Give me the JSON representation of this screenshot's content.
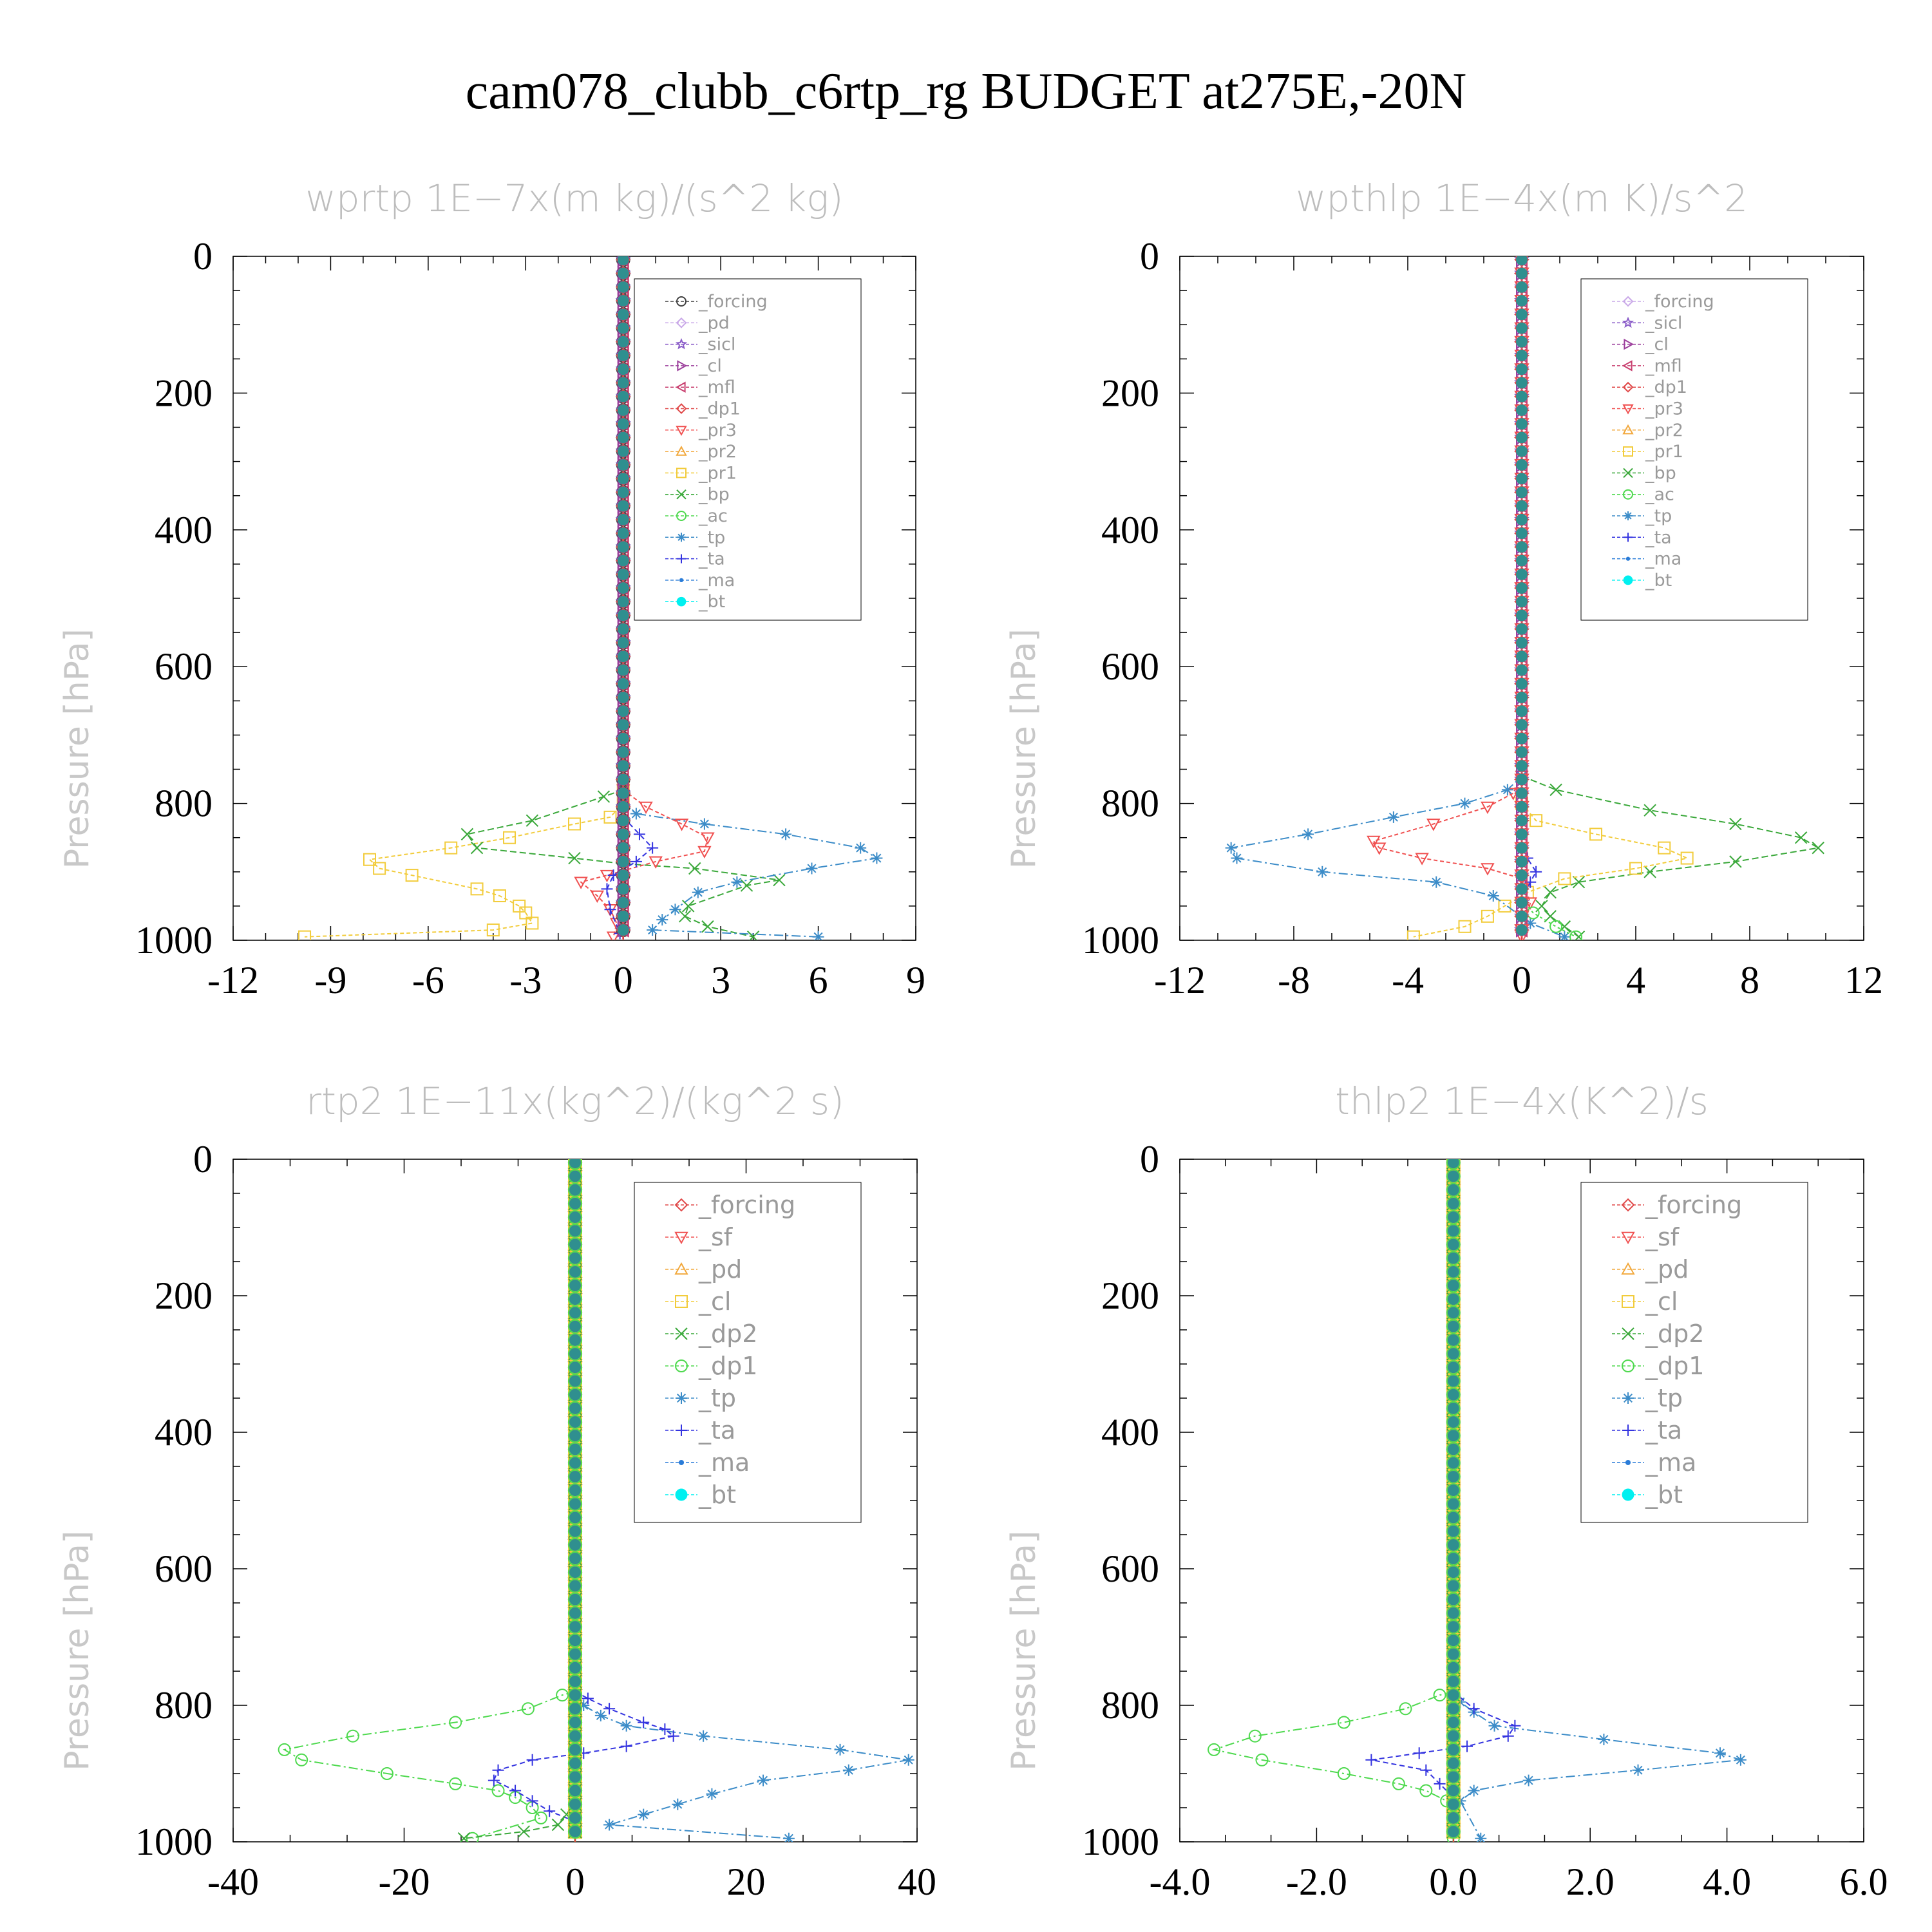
{
  "figure_title": "cam078_clubb_c6rtp_rg  BUDGET at275E,-20N",
  "chart_data": [
    {
      "type": "line",
      "title": "wprtp   1E−7x(m kg)/(s^2 kg)",
      "ylabel": "Pressure [hPa]",
      "xlabel": "",
      "xlim": [
        -12,
        9
      ],
      "xticks": [
        -12,
        -9,
        -6,
        -3,
        0,
        3,
        6,
        9
      ],
      "xtick_labels": [
        "-12",
        "-9",
        "-6",
        "-3",
        "0",
        "3",
        "6",
        "9"
      ],
      "ylim": [
        0,
        1000
      ],
      "yticks": [
        0,
        200,
        400,
        600,
        800,
        1000
      ],
      "ytick_labels": [
        "0",
        "200",
        "400",
        "600",
        "800",
        "1000"
      ],
      "y_reversed": true,
      "legend_position": "top-right",
      "legend_size": "small",
      "legend": [
        {
          "name": "_forcing",
          "color": "#404040",
          "marker": "circle"
        },
        {
          "name": "_pd",
          "color": "#c9a8e8",
          "marker": "diamond"
        },
        {
          "name": "_sicl",
          "color": "#8a5cc8",
          "marker": "star"
        },
        {
          "name": "_cl",
          "color": "#9c3f9c",
          "marker": "tri-right"
        },
        {
          "name": "_mfl",
          "color": "#c83e6e",
          "marker": "tri-left"
        },
        {
          "name": "_dp1",
          "color": "#e04848",
          "marker": "diamond"
        },
        {
          "name": "_pr3",
          "color": "#f05050",
          "marker": "tri-down"
        },
        {
          "name": "_pr2",
          "color": "#f2a83c",
          "marker": "tri-up"
        },
        {
          "name": "_pr1",
          "color": "#f2cc3c",
          "marker": "square"
        },
        {
          "name": "_bp",
          "color": "#3aa83a",
          "marker": "x"
        },
        {
          "name": "_ac",
          "color": "#4ed94e",
          "marker": "circle"
        },
        {
          "name": "_tp",
          "color": "#3c8cc8",
          "marker": "asterisk"
        },
        {
          "name": "_ta",
          "color": "#3434e0",
          "marker": "plus"
        },
        {
          "name": "_ma",
          "color": "#2a7cd8",
          "marker": "dot"
        },
        {
          "name": "_bt",
          "color": "#00f0f0",
          "marker": "filled-circle"
        }
      ],
      "series": [
        {
          "name": "_pr1",
          "color": "#f2cc3c",
          "marker": "square",
          "dash": "6,4",
          "x": [
            0,
            0,
            -0.4,
            -1.5,
            -3.5,
            -5.3,
            -7.8,
            -7.5,
            -6.5,
            -4.5,
            -3.8,
            -3.2,
            -3.0,
            -2.8,
            -4.0,
            -9.8
          ],
          "y": [
            780,
            800,
            820,
            830,
            850,
            865,
            882,
            895,
            905,
            925,
            935,
            950,
            960,
            975,
            985,
            995
          ]
        },
        {
          "name": "_bp",
          "color": "#3aa83a",
          "marker": "x",
          "dash": "10,5",
          "x": [
            0,
            -0.6,
            -2.8,
            -4.8,
            -4.5,
            -1.5,
            0,
            2.2,
            4.8,
            3.8,
            2.0,
            1.9,
            2.6,
            4.0
          ],
          "y": [
            780,
            790,
            825,
            845,
            865,
            880,
            888,
            895,
            912,
            920,
            950,
            965,
            980,
            995
          ]
        },
        {
          "name": "_tp",
          "color": "#3c8cc8",
          "marker": "asterisk",
          "dash": "14,5,3,5",
          "x": [
            0,
            0.4,
            2.5,
            5.0,
            7.3,
            7.8,
            5.8,
            3.5,
            2.3,
            1.6,
            1.2,
            0.9,
            6.0
          ],
          "y": [
            800,
            815,
            830,
            845,
            865,
            880,
            895,
            915,
            930,
            955,
            970,
            985,
            995
          ]
        },
        {
          "name": "_pr3",
          "color": "#f05050",
          "marker": "tri-down",
          "dash": "6,4",
          "x": [
            0,
            0.7,
            1.8,
            2.6,
            2.5,
            1.0,
            -0.5,
            -1.3,
            -0.8,
            -0.4,
            -0.2,
            -0.3
          ],
          "y": [
            780,
            805,
            830,
            850,
            870,
            885,
            905,
            915,
            935,
            955,
            975,
            995
          ]
        },
        {
          "name": "_ta",
          "color": "#3434e0",
          "marker": "plus",
          "dash": "8,5",
          "x": [
            0,
            0.5,
            0.9,
            0.4,
            -0.3,
            -0.5,
            -0.4,
            -0.1
          ],
          "y": [
            820,
            845,
            865,
            885,
            905,
            925,
            955,
            990
          ]
        }
      ]
    },
    {
      "type": "line",
      "title": "wpthlp   1E−4x(m K)/s^2",
      "ylabel": "Pressure [hPa]",
      "xlabel": "",
      "xlim": [
        -12,
        12
      ],
      "xticks": [
        -12,
        -8,
        -4,
        0,
        4,
        8,
        12
      ],
      "xtick_labels": [
        "-12",
        "-8",
        "-4",
        "0",
        "4",
        "8",
        "12"
      ],
      "ylim": [
        0,
        1000
      ],
      "yticks": [
        0,
        200,
        400,
        600,
        800,
        1000
      ],
      "ytick_labels": [
        "0",
        "200",
        "400",
        "600",
        "800",
        "1000"
      ],
      "y_reversed": true,
      "legend_position": "top-right",
      "legend_size": "small",
      "legend": [
        {
          "name": "_forcing",
          "color": "#c9a8e8",
          "marker": "diamond"
        },
        {
          "name": "_sicl",
          "color": "#8a5cc8",
          "marker": "star"
        },
        {
          "name": "_cl",
          "color": "#9c3f9c",
          "marker": "tri-right"
        },
        {
          "name": "_mfl",
          "color": "#c83e6e",
          "marker": "tri-left"
        },
        {
          "name": "_dp1",
          "color": "#e04848",
          "marker": "diamond"
        },
        {
          "name": "_pr3",
          "color": "#f05050",
          "marker": "tri-down"
        },
        {
          "name": "_pr2",
          "color": "#f2a83c",
          "marker": "tri-up"
        },
        {
          "name": "_pr1",
          "color": "#f2cc3c",
          "marker": "square"
        },
        {
          "name": "_bp",
          "color": "#3aa83a",
          "marker": "x"
        },
        {
          "name": "_ac",
          "color": "#4ed94e",
          "marker": "circle"
        },
        {
          "name": "_tp",
          "color": "#3c8cc8",
          "marker": "asterisk"
        },
        {
          "name": "_ta",
          "color": "#3434e0",
          "marker": "plus"
        },
        {
          "name": "_ma",
          "color": "#2a7cd8",
          "marker": "dot"
        },
        {
          "name": "_bt",
          "color": "#00f0f0",
          "marker": "filled-circle"
        }
      ],
      "series": [
        {
          "name": "_bp",
          "color": "#3aa83a",
          "marker": "x",
          "dash": "10,5",
          "x": [
            0,
            1.2,
            4.5,
            7.5,
            9.8,
            10.4,
            7.5,
            4.5,
            2.0,
            1.0,
            0.7,
            1.0,
            1.5,
            2.0
          ],
          "y": [
            760,
            780,
            810,
            830,
            850,
            865,
            885,
            900,
            915,
            930,
            950,
            965,
            980,
            995
          ]
        },
        {
          "name": "_pr1",
          "color": "#f2cc3c",
          "marker": "square",
          "dash": "6,4",
          "x": [
            0,
            0.5,
            2.6,
            5.0,
            5.8,
            4.0,
            1.5,
            0.2,
            -0.6,
            -1.2,
            -2.0,
            -3.8
          ],
          "y": [
            800,
            825,
            845,
            865,
            880,
            895,
            910,
            930,
            950,
            965,
            980,
            995
          ]
        },
        {
          "name": "_pr3",
          "color": "#f05050",
          "marker": "tri-down",
          "dash": "6,4",
          "x": [
            0,
            -0.3,
            -1.2,
            -3.1,
            -5.2,
            -5.0,
            -3.5,
            -1.2,
            0,
            0.3,
            0
          ],
          "y": [
            760,
            785,
            805,
            830,
            855,
            865,
            880,
            895,
            910,
            945,
            995
          ]
        },
        {
          "name": "_tp",
          "color": "#3c8cc8",
          "marker": "asterisk",
          "dash": "14,5,3,5",
          "x": [
            0,
            -0.5,
            -2.0,
            -4.5,
            -7.5,
            -10.2,
            -10.0,
            -7.0,
            -3.0,
            -1.0,
            0.3,
            1.5
          ],
          "y": [
            760,
            780,
            800,
            820,
            845,
            865,
            880,
            900,
            915,
            935,
            975,
            995
          ]
        },
        {
          "name": "_ta",
          "color": "#3434e0",
          "marker": "plus",
          "dash": "8,5",
          "x": [
            0,
            0.2,
            0.5,
            0.3,
            0
          ],
          "y": [
            860,
            880,
            900,
            915,
            940
          ]
        },
        {
          "name": "_ac",
          "color": "#4ed94e",
          "marker": "circle",
          "dash": "4,4",
          "x": [
            0,
            0.4,
            1.2,
            1.9
          ],
          "y": [
            940,
            960,
            980,
            995
          ]
        }
      ]
    },
    {
      "type": "line",
      "title": "rtp2   1E−11x(kg^2)/(kg^2 s)",
      "ylabel": "Pressure [hPa]",
      "xlabel": "",
      "xlim": [
        -40,
        40
      ],
      "xticks": [
        -40,
        -20,
        0,
        20,
        40
      ],
      "xtick_labels": [
        "-40",
        "-20",
        "0",
        "20",
        "40"
      ],
      "ylim": [
        0,
        1000
      ],
      "yticks": [
        0,
        200,
        400,
        600,
        800,
        1000
      ],
      "ytick_labels": [
        "0",
        "200",
        "400",
        "600",
        "800",
        "1000"
      ],
      "y_reversed": true,
      "legend_position": "top-right",
      "legend_size": "large",
      "legend": [
        {
          "name": "_forcing",
          "color": "#e04848",
          "marker": "diamond"
        },
        {
          "name": "_sf",
          "color": "#f05050",
          "marker": "tri-down"
        },
        {
          "name": "_pd",
          "color": "#f2a83c",
          "marker": "tri-up"
        },
        {
          "name": "_cl",
          "color": "#f2cc3c",
          "marker": "square"
        },
        {
          "name": "_dp2",
          "color": "#3aa83a",
          "marker": "x"
        },
        {
          "name": "_dp1",
          "color": "#4ed94e",
          "marker": "circle"
        },
        {
          "name": "_tp",
          "color": "#3c8cc8",
          "marker": "asterisk"
        },
        {
          "name": "_ta",
          "color": "#3434e0",
          "marker": "plus"
        },
        {
          "name": "_ma",
          "color": "#2a7cd8",
          "marker": "dot"
        },
        {
          "name": "_bt",
          "color": "#00f0f0",
          "marker": "filled-circle"
        }
      ],
      "series": [
        {
          "name": "_dp1",
          "color": "#4ed94e",
          "marker": "circle",
          "dash": "14,5,3,5",
          "x": [
            0,
            -1.5,
            -5.5,
            -14,
            -26,
            -34,
            -32,
            -22,
            -14,
            -9,
            -7,
            -5,
            -4,
            -12
          ],
          "y": [
            780,
            785,
            805,
            825,
            845,
            865,
            880,
            900,
            915,
            925,
            935,
            950,
            965,
            995
          ]
        },
        {
          "name": "_tp",
          "color": "#3c8cc8",
          "marker": "asterisk",
          "dash": "14,5,3,5",
          "x": [
            0,
            1.0,
            3.0,
            6.0,
            15,
            31,
            39,
            32,
            22,
            16,
            12,
            8,
            4.0,
            25
          ],
          "y": [
            780,
            800,
            815,
            830,
            845,
            865,
            880,
            895,
            910,
            930,
            945,
            960,
            975,
            995
          ]
        },
        {
          "name": "_ta",
          "color": "#3434e0",
          "marker": "plus",
          "dash": "8,5",
          "x": [
            0,
            1.5,
            4.0,
            8.0,
            10.5,
            11.5,
            6.0,
            1.0,
            -5.0,
            -9.0,
            -9.5,
            -7.0,
            -5.0,
            -3.0,
            0
          ],
          "y": [
            780,
            790,
            805,
            825,
            835,
            845,
            860,
            870,
            880,
            895,
            910,
            925,
            940,
            955,
            970
          ]
        },
        {
          "name": "_dp2",
          "color": "#3aa83a",
          "marker": "x",
          "dash": "10,5",
          "x": [
            0,
            -1.0,
            -2.0,
            -6.0,
            -13
          ],
          "y": [
            940,
            960,
            975,
            985,
            995
          ]
        }
      ]
    },
    {
      "type": "line",
      "title": "thlp2   1E−4x(K^2)/s",
      "ylabel": "Pressure [hPa]",
      "xlabel": "",
      "xlim": [
        -4.0,
        6.0
      ],
      "xticks": [
        -4,
        -2,
        0,
        2,
        4,
        6
      ],
      "xtick_labels": [
        "-4.0",
        "-2.0",
        "0.0",
        "2.0",
        "4.0",
        "6.0"
      ],
      "ylim": [
        0,
        1000
      ],
      "yticks": [
        0,
        200,
        400,
        600,
        800,
        1000
      ],
      "ytick_labels": [
        "0",
        "200",
        "400",
        "600",
        "800",
        "1000"
      ],
      "y_reversed": true,
      "legend_position": "top-right",
      "legend_size": "large",
      "legend": [
        {
          "name": "_forcing",
          "color": "#e04848",
          "marker": "diamond"
        },
        {
          "name": "_sf",
          "color": "#f05050",
          "marker": "tri-down"
        },
        {
          "name": "_pd",
          "color": "#f2a83c",
          "marker": "tri-up"
        },
        {
          "name": "_cl",
          "color": "#f2cc3c",
          "marker": "square"
        },
        {
          "name": "_dp2",
          "color": "#3aa83a",
          "marker": "x"
        },
        {
          "name": "_dp1",
          "color": "#4ed94e",
          "marker": "circle"
        },
        {
          "name": "_tp",
          "color": "#3c8cc8",
          "marker": "asterisk"
        },
        {
          "name": "_ta",
          "color": "#3434e0",
          "marker": "plus"
        },
        {
          "name": "_ma",
          "color": "#2a7cd8",
          "marker": "dot"
        },
        {
          "name": "_bt",
          "color": "#00f0f0",
          "marker": "filled-circle"
        }
      ],
      "series": [
        {
          "name": "_dp1",
          "color": "#4ed94e",
          "marker": "circle",
          "dash": "14,5,3,5",
          "x": [
            0,
            -0.2,
            -0.7,
            -1.6,
            -2.9,
            -3.5,
            -2.8,
            -1.6,
            -0.8,
            -0.4,
            -0.1,
            0
          ],
          "y": [
            780,
            785,
            805,
            825,
            845,
            865,
            880,
            900,
            915,
            925,
            940,
            995
          ]
        },
        {
          "name": "_tp",
          "color": "#3c8cc8",
          "marker": "asterisk",
          "dash": "14,5,3,5",
          "x": [
            0,
            0.1,
            0.3,
            0.6,
            2.2,
            3.9,
            4.2,
            2.7,
            1.1,
            0.3,
            0.1,
            0.4
          ],
          "y": [
            780,
            795,
            810,
            830,
            850,
            870,
            880,
            895,
            910,
            925,
            940,
            995
          ]
        },
        {
          "name": "_ta",
          "color": "#3434e0",
          "marker": "plus",
          "dash": "8,5",
          "x": [
            0,
            0.3,
            0.9,
            0.8,
            0.2,
            -0.5,
            -1.2,
            -0.4,
            -0.2,
            0
          ],
          "y": [
            780,
            805,
            830,
            845,
            860,
            870,
            880,
            895,
            915,
            935
          ]
        }
      ]
    }
  ]
}
